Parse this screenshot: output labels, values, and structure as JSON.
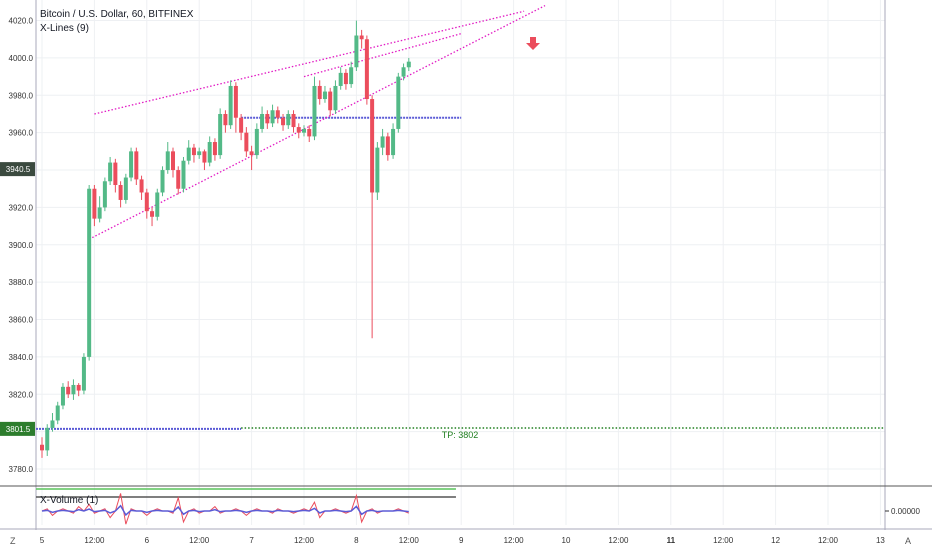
{
  "header": {
    "title": "Bitcoin / U.S. Dollar, 60, BITFINEX",
    "indicator": "X-Lines (9)"
  },
  "volume_pane": {
    "label": "X-Volume (1)",
    "value_label": "0.00000"
  },
  "corner": {
    "left": "Z",
    "right": "A"
  },
  "annotations": {
    "tp_label": "TP: 3802",
    "arrow": "down-arrow"
  },
  "price_tags": {
    "current": "3940.5",
    "target": "3801.5"
  },
  "colors": {
    "up": "#53b987",
    "down": "#eb4d5c",
    "trend": "#e21bc4",
    "xline": "#5b5bd6",
    "tp": "#1e7e1e",
    "price_tag_bg": "#3b4a3f",
    "target_tag_bg": "#2d7d2d"
  },
  "chart_data": {
    "type": "candlestick",
    "title": "Bitcoin / U.S. Dollar, 60, BITFINEX",
    "y_ticks": [
      3780,
      3800,
      3820,
      3840,
      3860,
      3880,
      3900,
      3920,
      3940,
      3960,
      3980,
      4000,
      4020
    ],
    "y_tick_labels": [
      "3780.0",
      "3800.0",
      "3820.0",
      "3840.0",
      "3860.0",
      "3880.0",
      "3900.0",
      "3920.0",
      "3940.0",
      "3960.0",
      "3980.0",
      "4000.0",
      "4020.0"
    ],
    "ylim": [
      3772,
      4031
    ],
    "x_ticks": [
      {
        "label": "5",
        "bold": false,
        "bar": 0
      },
      {
        "label": "12:00",
        "bold": false,
        "bar": 10
      },
      {
        "label": "6",
        "bold": false,
        "bar": 20
      },
      {
        "label": "12:00",
        "bold": false,
        "bar": 30
      },
      {
        "label": "7",
        "bold": false,
        "bar": 40
      },
      {
        "label": "12:00",
        "bold": false,
        "bar": 50
      },
      {
        "label": "8",
        "bold": false,
        "bar": 60
      },
      {
        "label": "12:00",
        "bold": false,
        "bar": 70
      },
      {
        "label": "9",
        "bold": false,
        "bar": 80
      },
      {
        "label": "12:00",
        "bold": false,
        "bar": 90
      },
      {
        "label": "10",
        "bold": false,
        "bar": 100
      },
      {
        "label": "12:00",
        "bold": false,
        "bar": 110
      },
      {
        "label": "11",
        "bold": true,
        "bar": 120
      },
      {
        "label": "12:00",
        "bold": false,
        "bar": 130
      },
      {
        "label": "12",
        "bold": false,
        "bar": 140
      },
      {
        "label": "12:00",
        "bold": false,
        "bar": 150
      },
      {
        "label": "13",
        "bold": false,
        "bar": 160
      }
    ],
    "candles": [
      [
        3793,
        3790,
        3797,
        3786
      ],
      [
        3790,
        3802,
        3804,
        3787
      ],
      [
        3802,
        3806,
        3810,
        3800
      ],
      [
        3806,
        3814,
        3816,
        3804
      ],
      [
        3814,
        3824,
        3826,
        3812
      ],
      [
        3824,
        3820,
        3827,
        3818
      ],
      [
        3820,
        3825,
        3828,
        3817
      ],
      [
        3825,
        3822,
        3826,
        3819
      ],
      [
        3822,
        3840,
        3842,
        3820
      ],
      [
        3840,
        3930,
        3932,
        3838
      ],
      [
        3930,
        3914,
        3932,
        3910
      ],
      [
        3914,
        3920,
        3926,
        3912
      ],
      [
        3920,
        3934,
        3936,
        3918
      ],
      [
        3934,
        3944,
        3947,
        3932
      ],
      [
        3944,
        3932,
        3946,
        3928
      ],
      [
        3932,
        3924,
        3934,
        3920
      ],
      [
        3924,
        3936,
        3938,
        3922
      ],
      [
        3936,
        3950,
        3952,
        3934
      ],
      [
        3950,
        3935,
        3952,
        3932
      ],
      [
        3935,
        3928,
        3937,
        3924
      ],
      [
        3928,
        3918,
        3930,
        3914
      ],
      [
        3918,
        3915,
        3920,
        3910
      ],
      [
        3915,
        3928,
        3930,
        3913
      ],
      [
        3928,
        3940,
        3942,
        3926
      ],
      [
        3940,
        3950,
        3955,
        3938
      ],
      [
        3950,
        3940,
        3952,
        3936
      ],
      [
        3940,
        3930,
        3942,
        3927
      ],
      [
        3930,
        3945,
        3947,
        3928
      ],
      [
        3945,
        3952,
        3956,
        3943
      ],
      [
        3952,
        3948,
        3954,
        3944
      ],
      [
        3948,
        3950,
        3952,
        3946
      ],
      [
        3950,
        3944,
        3951,
        3940
      ],
      [
        3944,
        3955,
        3958,
        3942
      ],
      [
        3955,
        3948,
        3957,
        3945
      ],
      [
        3948,
        3970,
        3973,
        3946
      ],
      [
        3970,
        3964,
        3972,
        3960
      ],
      [
        3964,
        3985,
        3988,
        3962
      ],
      [
        3985,
        3968,
        3987,
        3960
      ],
      [
        3968,
        3960,
        3970,
        3956
      ],
      [
        3960,
        3950,
        3963,
        3947
      ],
      [
        3950,
        3948,
        3953,
        3940
      ],
      [
        3948,
        3962,
        3965,
        3946
      ],
      [
        3962,
        3970,
        3974,
        3960
      ],
      [
        3970,
        3965,
        3972,
        3962
      ],
      [
        3965,
        3972,
        3975,
        3963
      ],
      [
        3972,
        3968,
        3974,
        3965
      ],
      [
        3968,
        3964,
        3970,
        3961
      ],
      [
        3964,
        3970,
        3972,
        3962
      ],
      [
        3970,
        3963,
        3972,
        3960
      ],
      [
        3963,
        3960,
        3965,
        3957
      ],
      [
        3960,
        3962,
        3964,
        3958
      ],
      [
        3962,
        3958,
        3964,
        3955
      ],
      [
        3958,
        3985,
        3990,
        3956
      ],
      [
        3985,
        3978,
        3988,
        3975
      ],
      [
        3978,
        3982,
        3985,
        3976
      ],
      [
        3982,
        3972,
        3984,
        3969
      ],
      [
        3972,
        3985,
        3988,
        3970
      ],
      [
        3985,
        3992,
        3995,
        3983
      ],
      [
        3992,
        3986,
        3994,
        3983
      ],
      [
        3986,
        3995,
        3998,
        3984
      ],
      [
        3995,
        4012,
        4020,
        3993
      ],
      [
        4012,
        4010,
        4015,
        4005
      ],
      [
        4010,
        3978,
        4012,
        3975
      ],
      [
        3978,
        3928,
        3980,
        3850
      ],
      [
        3928,
        3952,
        3955,
        3924
      ],
      [
        3952,
        3958,
        3962,
        3948
      ],
      [
        3958,
        3948,
        3960,
        3945
      ],
      [
        3948,
        3962,
        3965,
        3946
      ],
      [
        3962,
        3990,
        3992,
        3960
      ],
      [
        3990,
        3995,
        3997,
        3988
      ],
      [
        3995,
        3998,
        4000,
        3993
      ]
    ],
    "trendlines": [
      {
        "from": [
          10,
          3970
        ],
        "to": [
          92,
          4025
        ]
      },
      {
        "from": [
          9,
          3903
        ],
        "to": [
          96,
          4028
        ]
      },
      {
        "from": [
          50,
          3990
        ],
        "to": [
          80,
          4013
        ]
      }
    ],
    "x_lines_level": 3968,
    "x_lines_start": 38,
    "x_lines_end": 80,
    "support_level": 3801.5,
    "support_end": 38,
    "tp_level": 3802,
    "current_price": 3940.5,
    "volume": [
      0,
      1,
      -2,
      0,
      1,
      0,
      -1,
      2,
      0,
      3,
      -1,
      0,
      1,
      -3,
      0,
      8,
      -6,
      1,
      0,
      0,
      -2,
      0,
      1,
      0,
      0,
      -1,
      6,
      -5,
      0,
      1,
      -1,
      0,
      0,
      2,
      -1,
      0,
      0,
      1,
      0,
      -2,
      0,
      1,
      0,
      0,
      -1,
      1,
      0,
      0,
      -1,
      0,
      1,
      0,
      4,
      -3,
      0,
      0,
      1,
      0,
      -1,
      0,
      7,
      -5,
      0,
      1,
      -1,
      0,
      0,
      0,
      1,
      0,
      -1
    ]
  }
}
